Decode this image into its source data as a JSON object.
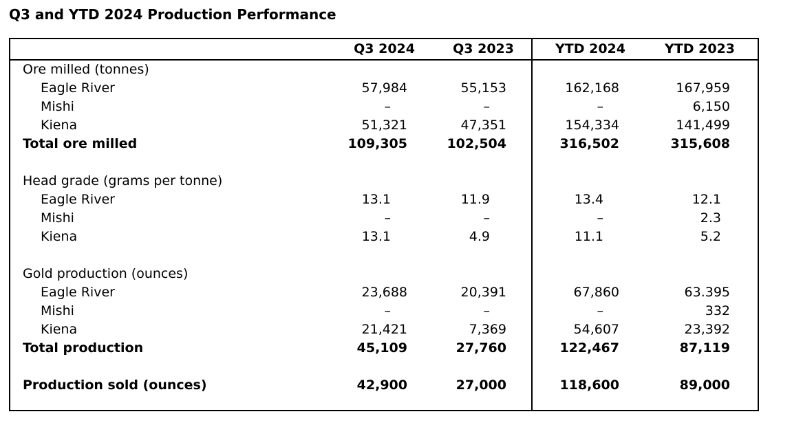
{
  "title": "Q3 and YTD 2024 Production Performance",
  "table": {
    "columns": [
      "Q3 2024",
      "Q3 2023",
      "YTD 2024",
      "YTD 2023"
    ],
    "rows": [
      {
        "type": "section",
        "label": "Ore milled (tonnes)",
        "values": [
          "",
          "",
          "",
          ""
        ]
      },
      {
        "type": "indent",
        "label": "Eagle River",
        "values": [
          "57,984",
          "55,153",
          "162,168",
          "167,959"
        ]
      },
      {
        "type": "indent",
        "label": "Mishi",
        "values": [
          "–",
          "–",
          "–",
          "6,150"
        ]
      },
      {
        "type": "indent",
        "label": "Kiena",
        "values": [
          "51,321",
          "47,351",
          "154,334",
          "141,499"
        ]
      },
      {
        "type": "total",
        "label": "Total ore milled",
        "values": [
          "109,305",
          "102,504",
          "316,502",
          "315,608"
        ]
      },
      {
        "type": "blank",
        "label": "",
        "values": [
          "",
          "",
          "",
          ""
        ]
      },
      {
        "type": "section",
        "label": "Head grade (grams per tonne)",
        "values": [
          "",
          "",
          "",
          ""
        ]
      },
      {
        "type": "indent",
        "label": "Eagle River",
        "values": [
          "13.1",
          "11.9",
          "13.4",
          "12.1"
        ]
      },
      {
        "type": "indent",
        "label": "Mishi",
        "values": [
          "–",
          "–",
          "–",
          "2.3"
        ]
      },
      {
        "type": "indent",
        "label": "Kiena",
        "values": [
          "13.1",
          "4.9",
          "11.1",
          "5.2"
        ]
      },
      {
        "type": "blank",
        "label": "",
        "values": [
          "",
          "",
          "",
          ""
        ]
      },
      {
        "type": "section",
        "label": "Gold production (ounces)",
        "values": [
          "",
          "",
          "",
          ""
        ]
      },
      {
        "type": "indent",
        "label": "Eagle River",
        "values": [
          "23,688",
          "20,391",
          "67,860",
          "63.395"
        ]
      },
      {
        "type": "indent",
        "label": "Mishi",
        "values": [
          "–",
          "–",
          "–",
          "332"
        ]
      },
      {
        "type": "indent",
        "label": "Kiena",
        "values": [
          "21,421",
          "7,369",
          "54,607",
          "23,392"
        ]
      },
      {
        "type": "total",
        "label": "Total production",
        "values": [
          "45,109",
          "27,760",
          "122,467",
          "87,119"
        ]
      },
      {
        "type": "blank",
        "label": "",
        "values": [
          "",
          "",
          "",
          ""
        ]
      },
      {
        "type": "total",
        "label": "Production sold (ounces)",
        "values": [
          "42,900",
          "27,000",
          "118,600",
          "89,000"
        ]
      }
    ]
  }
}
